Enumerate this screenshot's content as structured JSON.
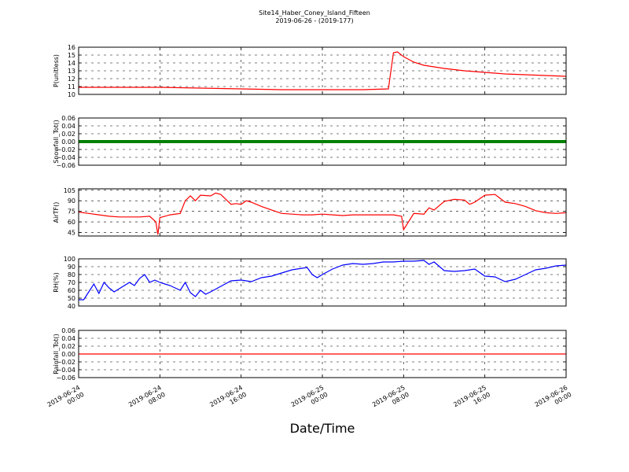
{
  "title": {
    "line1": "Site14_Haber_Coney_Island_Fifteen",
    "line2": "2019-06-26 - (2019-177)"
  },
  "xlabel": "Date/Time",
  "x_ticks": [
    {
      "line1": "2019-06-24",
      "line2": "00:00"
    },
    {
      "line1": "2019-06-24",
      "line2": "08:00"
    },
    {
      "line1": "2019-06-24",
      "line2": "16:00"
    },
    {
      "line1": "2019-06-25",
      "line2": "00:00"
    },
    {
      "line1": "2019-06-25",
      "line2": "08:00"
    },
    {
      "line1": "2019-06-25",
      "line2": "16:00"
    },
    {
      "line1": "2019-06-26",
      "line2": "00:00"
    }
  ],
  "colors": {
    "red": "#ff0000",
    "green": "#008000",
    "blue": "#0000ff",
    "axis": "#000000"
  },
  "chart_data": [
    {
      "type": "line",
      "ylabel": "P(unitless)",
      "ylim": [
        10,
        16
      ],
      "yticks": [
        "10",
        "11",
        "12",
        "13",
        "14",
        "15",
        "16"
      ],
      "grid": true,
      "color": "red",
      "x_range": [
        "2019-06-24 00:00",
        "2019-06-26 00:00"
      ],
      "x_hours": [
        0,
        4,
        8,
        12,
        16,
        20,
        24,
        28,
        30.5,
        31,
        31.4,
        32,
        33,
        34,
        36,
        38,
        40,
        42,
        44,
        46,
        48
      ],
      "values": [
        10.9,
        10.9,
        10.9,
        10.8,
        10.7,
        10.6,
        10.6,
        10.6,
        10.7,
        15.3,
        15.4,
        14.8,
        14.1,
        13.7,
        13.3,
        13.0,
        12.8,
        12.6,
        12.5,
        12.4,
        12.3
      ]
    },
    {
      "type": "scatter",
      "ylabel": "Snowfall_Tot()",
      "ylim": [
        -0.06,
        0.06
      ],
      "yticks": [
        "−0.06",
        "−0.04",
        "−0.02",
        "0.00",
        "0.02",
        "0.04",
        "0.06"
      ],
      "grid": true,
      "color": "green",
      "x_range": [
        "2019-06-24 00:00",
        "2019-06-26 00:00"
      ],
      "constant_value": 0.0
    },
    {
      "type": "line",
      "ylabel": "AirTF()",
      "ylim": [
        40,
        107
      ],
      "yticks": [
        "45",
        "60",
        "75",
        "90",
        "105"
      ],
      "grid": true,
      "color": "red",
      "x_range": [
        "2019-06-24 00:00",
        "2019-06-26 00:00"
      ],
      "x_hours": [
        0,
        1,
        2,
        3,
        4,
        5,
        6,
        7,
        7.6,
        7.8,
        8,
        9,
        10,
        10.5,
        11,
        11.5,
        12,
        13,
        13.5,
        14,
        15,
        15.5,
        16,
        16.5,
        17,
        18,
        19,
        20,
        21,
        22,
        23,
        24,
        25,
        26,
        27,
        28,
        29,
        30,
        31,
        31.8,
        32,
        33,
        34,
        34.5,
        35,
        36,
        37,
        38,
        38.5,
        39,
        40,
        41,
        42,
        43,
        44,
        45,
        46,
        47,
        48
      ],
      "values": [
        74,
        72,
        70,
        68,
        67,
        67,
        67,
        68,
        60,
        42,
        66,
        70,
        72,
        90,
        97,
        90,
        98,
        97,
        101,
        99,
        85,
        86,
        85,
        90,
        88,
        82,
        77,
        72,
        71,
        70,
        70,
        71,
        70,
        69,
        70,
        70,
        70,
        70,
        70,
        68,
        49,
        72,
        71,
        80,
        77,
        89,
        92,
        91,
        85,
        88,
        98,
        99,
        88,
        86,
        82,
        76,
        73,
        72,
        73
      ]
    },
    {
      "type": "line",
      "ylabel": "RH(%)",
      "ylim": [
        40,
        100
      ],
      "yticks": [
        "40",
        "50",
        "60",
        "70",
        "80",
        "90",
        "100"
      ],
      "grid": true,
      "color": "blue",
      "x_range": [
        "2019-06-24 00:00",
        "2019-06-26 00:00"
      ],
      "x_hours": [
        0,
        0.5,
        1,
        1.5,
        2,
        2.5,
        3,
        3.5,
        4,
        5,
        5.5,
        6,
        6.5,
        7,
        7.5,
        8,
        8.5,
        9,
        10,
        10.5,
        11,
        11.5,
        12,
        12.5,
        13,
        14,
        15,
        16,
        17,
        18,
        19,
        20,
        21,
        22,
        22.5,
        23,
        23.5,
        24,
        25,
        26,
        27,
        28,
        29,
        30,
        31,
        32,
        33,
        34,
        34.5,
        35,
        36,
        37,
        38,
        39,
        40,
        41,
        42,
        43,
        44,
        45,
        46,
        47,
        48
      ],
      "values": [
        48,
        48,
        58,
        68,
        56,
        70,
        63,
        58,
        62,
        70,
        66,
        75,
        80,
        70,
        73,
        70,
        68,
        66,
        60,
        70,
        57,
        52,
        60,
        55,
        58,
        65,
        72,
        73,
        71,
        76,
        78,
        82,
        86,
        88,
        89,
        80,
        76,
        80,
        87,
        92,
        94,
        93,
        94,
        96,
        96,
        97,
        97,
        98,
        93,
        96,
        85,
        84,
        85,
        87,
        78,
        77,
        71,
        74,
        80,
        86,
        88,
        91,
        92
      ]
    },
    {
      "type": "line",
      "ylabel": "Rainfall_Tot()",
      "ylim": [
        -0.06,
        0.06
      ],
      "yticks": [
        "−0.06",
        "−0.04",
        "−0.02",
        "0.00",
        "0.02",
        "0.04",
        "0.06"
      ],
      "grid": true,
      "color": "red",
      "x_range": [
        "2019-06-24 00:00",
        "2019-06-26 00:00"
      ],
      "constant_value": 0.0
    }
  ]
}
